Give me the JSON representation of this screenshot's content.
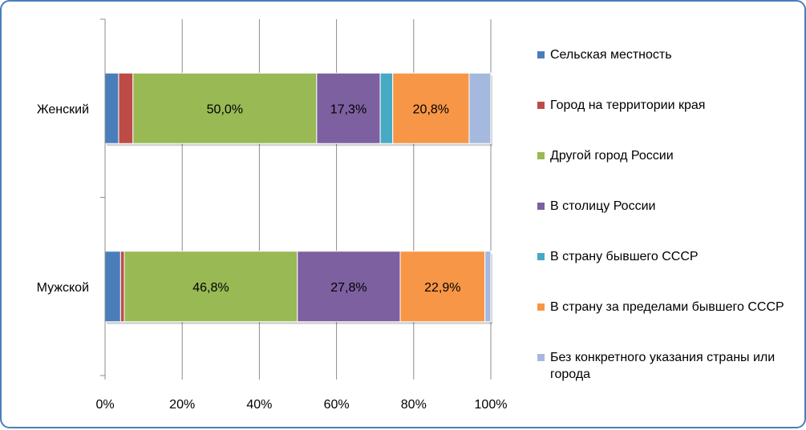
{
  "chart_data": {
    "type": "bar",
    "orientation": "horizontal",
    "stacked": "percent",
    "title": "",
    "xlabel": "",
    "ylabel": "",
    "categories": [
      "Женский",
      "Мужской"
    ],
    "xlim": [
      0,
      100
    ],
    "x_ticks": [
      "0%",
      "20%",
      "40%",
      "60%",
      "80%",
      "100%"
    ],
    "grid": "vertical",
    "legend_position": "right",
    "series": [
      {
        "name": "Сельская местность",
        "color": "#4a7ebb",
        "values": [
          3.7,
          4.2
        ],
        "labels": [
          "",
          ""
        ]
      },
      {
        "name": "Город на территории края",
        "color": "#be4b48",
        "values": [
          3.9,
          1.0
        ],
        "labels": [
          "",
          ""
        ]
      },
      {
        "name": "Другой город России",
        "color": "#98b954",
        "values": [
          50.0,
          46.8
        ],
        "labels": [
          "50,0%",
          "46,8%"
        ]
      },
      {
        "name": "В столицу России",
        "color": "#7d60a0",
        "values": [
          17.3,
          27.8
        ],
        "labels": [
          "17,3%",
          "27,8%"
        ]
      },
      {
        "name": "В страну бывшего СССР",
        "color": "#46aac5",
        "values": [
          3.4,
          0.0
        ],
        "labels": [
          "",
          ""
        ]
      },
      {
        "name": "В страну за пределами бывшего СССР",
        "color": "#f79646",
        "values": [
          20.8,
          22.9
        ],
        "labels": [
          "20,8%",
          "22,9%"
        ]
      },
      {
        "name": "Без конкретного указания страны или города",
        "color": "#a5b9de",
        "values": [
          5.9,
          1.6
        ],
        "labels": [
          "",
          ""
        ]
      }
    ]
  }
}
